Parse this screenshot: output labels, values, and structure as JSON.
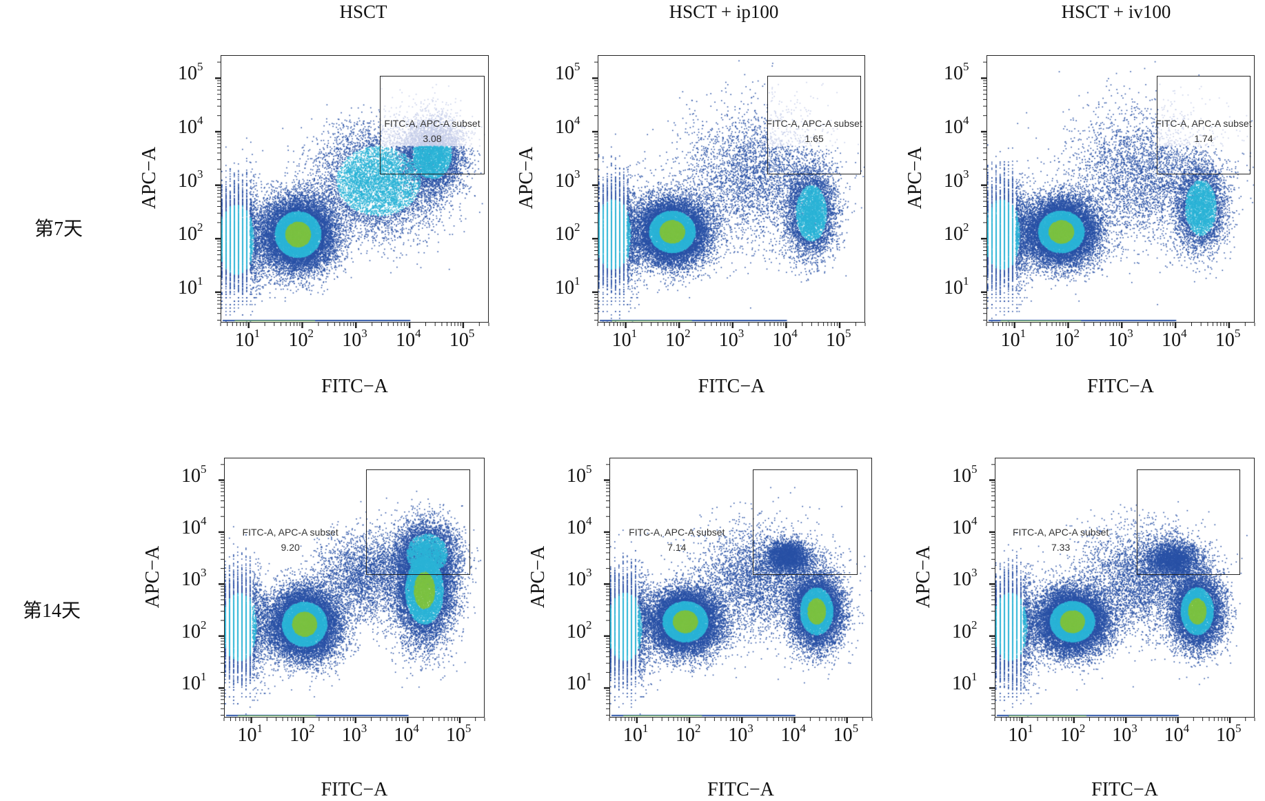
{
  "columns": [
    "HSCT",
    "HSCT + ip100",
    "HSCT + iv100"
  ],
  "rows": [
    "第7天",
    "第14天"
  ],
  "chart_data": {
    "type": "scatter",
    "subtype": "flow-cytometry-density-plot",
    "xlabel": "FITC−A",
    "ylabel": "APC−A",
    "xscale": "log",
    "yscale": "log",
    "xlim": [
      3,
      300000
    ],
    "ylim": [
      2.7,
      270000
    ],
    "xticks": [
      {
        "base": "10",
        "exp": "1"
      },
      {
        "base": "10",
        "exp": "2"
      },
      {
        "base": "10",
        "exp": "3"
      },
      {
        "base": "10",
        "exp": "4"
      },
      {
        "base": "10",
        "exp": "5"
      }
    ],
    "yticks": [
      {
        "base": "10",
        "exp": "1"
      },
      {
        "base": "10",
        "exp": "2"
      },
      {
        "base": "10",
        "exp": "3"
      },
      {
        "base": "10",
        "exp": "4"
      },
      {
        "base": "10",
        "exp": "5"
      }
    ],
    "gate_name": "FITC-A, APC-A subset",
    "density_colors": [
      "#2a52a6",
      "#2bb3d6",
      "#7cc243",
      "#c6cee9"
    ],
    "panels": [
      {
        "row": "第7天",
        "column": "HSCT",
        "gate_value": "3.08",
        "gate_x": [
          2800,
          250000
        ],
        "gate_y": [
          1600,
          110000
        ]
      },
      {
        "row": "第7天",
        "column": "HSCT + ip100",
        "gate_value": "1.65",
        "gate_x": [
          4500,
          250000
        ],
        "gate_y": [
          1600,
          110000
        ]
      },
      {
        "row": "第7天",
        "column": "HSCT + iv100",
        "gate_value": "1.74",
        "gate_x": [
          4500,
          250000
        ],
        "gate_y": [
          1600,
          110000
        ]
      },
      {
        "row": "第14天",
        "column": "HSCT",
        "gate_value": "9.20",
        "gate_x": [
          1600,
          160000
        ],
        "gate_y": [
          1500,
          160000
        ]
      },
      {
        "row": "第14天",
        "column": "HSCT + ip100",
        "gate_value": "7.14",
        "gate_x": [
          1600,
          160000
        ],
        "gate_y": [
          1500,
          160000
        ]
      },
      {
        "row": "第14天",
        "column": "HSCT + iv100",
        "gate_value": "7.33",
        "gate_x": [
          1600,
          160000
        ],
        "gate_y": [
          1500,
          160000
        ]
      }
    ]
  }
}
